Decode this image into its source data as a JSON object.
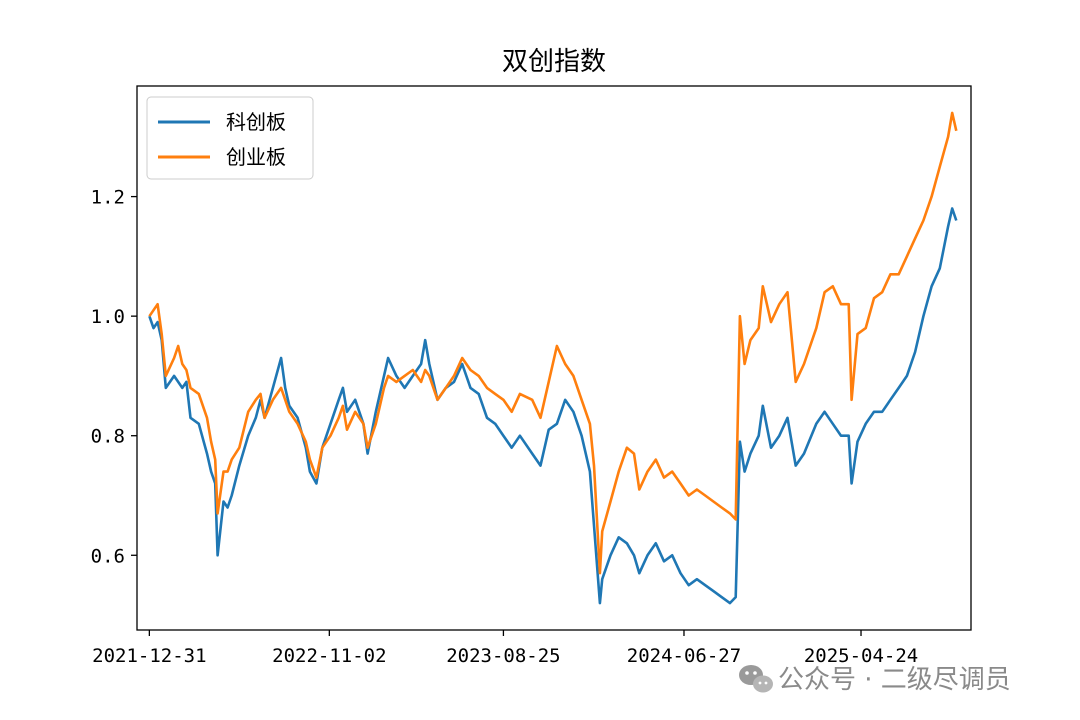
{
  "chart_data": {
    "type": "line",
    "title": "双创指数",
    "xlabel": "",
    "ylabel": "",
    "x_tick_labels": [
      "2021-12-31",
      "2022-11-02",
      "2023-08-25",
      "2024-06-27",
      "2025-04-24"
    ],
    "x_range": [
      "2021-12-10",
      "2025-10-28"
    ],
    "ylim": [
      0.475,
      1.385
    ],
    "y_ticks": [
      0.6,
      0.8,
      1.0,
      1.2
    ],
    "y_tick_labels": [
      "0.6",
      "0.8",
      "1.0",
      "1.2"
    ],
    "grid": false,
    "legend_position": "top-left",
    "series": [
      {
        "name": "科创板",
        "color": "#1f77b4",
        "points": [
          [
            "2021-12-31",
            1.0
          ],
          [
            "2022-01-07",
            0.98
          ],
          [
            "2022-01-14",
            0.99
          ],
          [
            "2022-01-21",
            0.96
          ],
          [
            "2022-01-28",
            0.88
          ],
          [
            "2022-02-11",
            0.9
          ],
          [
            "2022-02-25",
            0.88
          ],
          [
            "2022-03-04",
            0.89
          ],
          [
            "2022-03-11",
            0.83
          ],
          [
            "2022-03-25",
            0.82
          ],
          [
            "2022-04-08",
            0.77
          ],
          [
            "2022-04-15",
            0.74
          ],
          [
            "2022-04-22",
            0.72
          ],
          [
            "2022-04-26",
            0.6
          ],
          [
            "2022-05-06",
            0.69
          ],
          [
            "2022-05-13",
            0.68
          ],
          [
            "2022-05-20",
            0.7
          ],
          [
            "2022-06-02",
            0.75
          ],
          [
            "2022-06-17",
            0.8
          ],
          [
            "2022-06-30",
            0.83
          ],
          [
            "2022-07-08",
            0.86
          ],
          [
            "2022-07-15",
            0.83
          ],
          [
            "2022-07-29",
            0.88
          ],
          [
            "2022-08-12",
            0.93
          ],
          [
            "2022-08-19",
            0.88
          ],
          [
            "2022-08-26",
            0.85
          ],
          [
            "2022-09-09",
            0.83
          ],
          [
            "2022-09-23",
            0.78
          ],
          [
            "2022-09-30",
            0.74
          ],
          [
            "2022-10-11",
            0.72
          ],
          [
            "2022-10-21",
            0.78
          ],
          [
            "2022-11-04",
            0.82
          ],
          [
            "2022-11-18",
            0.86
          ],
          [
            "2022-11-25",
            0.88
          ],
          [
            "2022-12-02",
            0.84
          ],
          [
            "2022-12-16",
            0.86
          ],
          [
            "2022-12-30",
            0.82
          ],
          [
            "2023-01-06",
            0.77
          ],
          [
            "2023-01-20",
            0.84
          ],
          [
            "2023-02-03",
            0.9
          ],
          [
            "2023-02-10",
            0.93
          ],
          [
            "2023-02-24",
            0.9
          ],
          [
            "2023-03-10",
            0.88
          ],
          [
            "2023-03-24",
            0.9
          ],
          [
            "2023-04-07",
            0.92
          ],
          [
            "2023-04-14",
            0.96
          ],
          [
            "2023-04-21",
            0.92
          ],
          [
            "2023-05-05",
            0.86
          ],
          [
            "2023-05-19",
            0.88
          ],
          [
            "2023-06-02",
            0.89
          ],
          [
            "2023-06-16",
            0.92
          ],
          [
            "2023-06-30",
            0.88
          ],
          [
            "2023-07-14",
            0.87
          ],
          [
            "2023-07-28",
            0.83
          ],
          [
            "2023-08-11",
            0.82
          ],
          [
            "2023-08-25",
            0.8
          ],
          [
            "2023-09-08",
            0.78
          ],
          [
            "2023-09-22",
            0.8
          ],
          [
            "2023-10-13",
            0.77
          ],
          [
            "2023-10-27",
            0.75
          ],
          [
            "2023-11-10",
            0.81
          ],
          [
            "2023-11-24",
            0.82
          ],
          [
            "2023-12-08",
            0.86
          ],
          [
            "2023-12-22",
            0.84
          ],
          [
            "2024-01-05",
            0.8
          ],
          [
            "2024-01-19",
            0.74
          ],
          [
            "2024-01-26",
            0.65
          ],
          [
            "2024-02-05",
            0.52
          ],
          [
            "2024-02-09",
            0.56
          ],
          [
            "2024-02-23",
            0.6
          ],
          [
            "2024-03-08",
            0.63
          ],
          [
            "2024-03-22",
            0.62
          ],
          [
            "2024-04-03",
            0.6
          ],
          [
            "2024-04-12",
            0.57
          ],
          [
            "2024-04-26",
            0.6
          ],
          [
            "2024-05-10",
            0.62
          ],
          [
            "2024-05-24",
            0.59
          ],
          [
            "2024-06-07",
            0.6
          ],
          [
            "2024-06-21",
            0.57
          ],
          [
            "2024-07-05",
            0.55
          ],
          [
            "2024-07-19",
            0.56
          ],
          [
            "2024-08-02",
            0.55
          ],
          [
            "2024-08-16",
            0.54
          ],
          [
            "2024-08-30",
            0.53
          ],
          [
            "2024-09-13",
            0.52
          ],
          [
            "2024-09-23",
            0.53
          ],
          [
            "2024-09-30",
            0.79
          ],
          [
            "2024-10-08",
            0.74
          ],
          [
            "2024-10-18",
            0.77
          ],
          [
            "2024-11-01",
            0.8
          ],
          [
            "2024-11-08",
            0.85
          ],
          [
            "2024-11-22",
            0.78
          ],
          [
            "2024-12-06",
            0.8
          ],
          [
            "2024-12-20",
            0.83
          ],
          [
            "2025-01-03",
            0.75
          ],
          [
            "2025-01-17",
            0.77
          ],
          [
            "2025-02-07",
            0.82
          ],
          [
            "2025-02-21",
            0.84
          ],
          [
            "2025-03-07",
            0.82
          ],
          [
            "2025-03-21",
            0.8
          ],
          [
            "2025-04-03",
            0.8
          ],
          [
            "2025-04-08",
            0.72
          ],
          [
            "2025-04-18",
            0.79
          ],
          [
            "2025-05-02",
            0.82
          ],
          [
            "2025-05-16",
            0.84
          ],
          [
            "2025-05-30",
            0.84
          ],
          [
            "2025-06-13",
            0.86
          ],
          [
            "2025-06-27",
            0.88
          ],
          [
            "2025-07-11",
            0.9
          ],
          [
            "2025-07-25",
            0.94
          ],
          [
            "2025-08-08",
            1.0
          ],
          [
            "2025-08-22",
            1.05
          ],
          [
            "2025-09-05",
            1.08
          ],
          [
            "2025-09-19",
            1.15
          ],
          [
            "2025-09-26",
            1.18
          ],
          [
            "2025-10-03",
            1.16
          ]
        ]
      },
      {
        "name": "创业板",
        "color": "#ff7f0e",
        "points": [
          [
            "2021-12-31",
            1.0
          ],
          [
            "2022-01-07",
            1.01
          ],
          [
            "2022-01-14",
            1.02
          ],
          [
            "2022-01-21",
            0.97
          ],
          [
            "2022-01-28",
            0.9
          ],
          [
            "2022-02-11",
            0.93
          ],
          [
            "2022-02-18",
            0.95
          ],
          [
            "2022-02-25",
            0.92
          ],
          [
            "2022-03-04",
            0.91
          ],
          [
            "2022-03-11",
            0.88
          ],
          [
            "2022-03-25",
            0.87
          ],
          [
            "2022-04-08",
            0.83
          ],
          [
            "2022-04-15",
            0.79
          ],
          [
            "2022-04-22",
            0.76
          ],
          [
            "2022-04-26",
            0.67
          ],
          [
            "2022-05-06",
            0.74
          ],
          [
            "2022-05-13",
            0.74
          ],
          [
            "2022-05-20",
            0.76
          ],
          [
            "2022-06-02",
            0.78
          ],
          [
            "2022-06-17",
            0.84
          ],
          [
            "2022-06-30",
            0.86
          ],
          [
            "2022-07-08",
            0.87
          ],
          [
            "2022-07-15",
            0.83
          ],
          [
            "2022-07-29",
            0.86
          ],
          [
            "2022-08-12",
            0.88
          ],
          [
            "2022-08-19",
            0.86
          ],
          [
            "2022-08-26",
            0.84
          ],
          [
            "2022-09-09",
            0.82
          ],
          [
            "2022-09-23",
            0.79
          ],
          [
            "2022-09-30",
            0.76
          ],
          [
            "2022-10-11",
            0.73
          ],
          [
            "2022-10-21",
            0.78
          ],
          [
            "2022-11-04",
            0.8
          ],
          [
            "2022-11-18",
            0.83
          ],
          [
            "2022-11-25",
            0.85
          ],
          [
            "2022-12-02",
            0.81
          ],
          [
            "2022-12-16",
            0.84
          ],
          [
            "2022-12-30",
            0.82
          ],
          [
            "2023-01-06",
            0.78
          ],
          [
            "2023-01-20",
            0.82
          ],
          [
            "2023-02-03",
            0.88
          ],
          [
            "2023-02-10",
            0.9
          ],
          [
            "2023-02-24",
            0.89
          ],
          [
            "2023-03-10",
            0.9
          ],
          [
            "2023-03-24",
            0.91
          ],
          [
            "2023-04-07",
            0.89
          ],
          [
            "2023-04-14",
            0.91
          ],
          [
            "2023-04-21",
            0.9
          ],
          [
            "2023-05-05",
            0.86
          ],
          [
            "2023-05-19",
            0.88
          ],
          [
            "2023-06-02",
            0.9
          ],
          [
            "2023-06-16",
            0.93
          ],
          [
            "2023-06-30",
            0.91
          ],
          [
            "2023-07-14",
            0.9
          ],
          [
            "2023-07-28",
            0.88
          ],
          [
            "2023-08-11",
            0.87
          ],
          [
            "2023-08-25",
            0.86
          ],
          [
            "2023-09-08",
            0.84
          ],
          [
            "2023-09-22",
            0.87
          ],
          [
            "2023-10-13",
            0.86
          ],
          [
            "2023-10-27",
            0.83
          ],
          [
            "2023-11-10",
            0.89
          ],
          [
            "2023-11-24",
            0.95
          ],
          [
            "2023-12-08",
            0.92
          ],
          [
            "2023-12-22",
            0.9
          ],
          [
            "2024-01-05",
            0.86
          ],
          [
            "2024-01-19",
            0.82
          ],
          [
            "2024-01-26",
            0.75
          ],
          [
            "2024-02-05",
            0.57
          ],
          [
            "2024-02-09",
            0.64
          ],
          [
            "2024-02-23",
            0.69
          ],
          [
            "2024-03-08",
            0.74
          ],
          [
            "2024-03-22",
            0.78
          ],
          [
            "2024-04-03",
            0.77
          ],
          [
            "2024-04-12",
            0.71
          ],
          [
            "2024-04-26",
            0.74
          ],
          [
            "2024-05-10",
            0.76
          ],
          [
            "2024-05-24",
            0.73
          ],
          [
            "2024-06-07",
            0.74
          ],
          [
            "2024-06-21",
            0.72
          ],
          [
            "2024-07-05",
            0.7
          ],
          [
            "2024-07-19",
            0.71
          ],
          [
            "2024-08-02",
            0.7
          ],
          [
            "2024-08-16",
            0.69
          ],
          [
            "2024-08-30",
            0.68
          ],
          [
            "2024-09-13",
            0.67
          ],
          [
            "2024-09-23",
            0.66
          ],
          [
            "2024-09-30",
            1.0
          ],
          [
            "2024-10-08",
            0.92
          ],
          [
            "2024-10-18",
            0.96
          ],
          [
            "2024-11-01",
            0.98
          ],
          [
            "2024-11-08",
            1.05
          ],
          [
            "2024-11-22",
            0.99
          ],
          [
            "2024-12-06",
            1.02
          ],
          [
            "2024-12-20",
            1.04
          ],
          [
            "2025-01-03",
            0.89
          ],
          [
            "2025-01-17",
            0.92
          ],
          [
            "2025-02-07",
            0.98
          ],
          [
            "2025-02-21",
            1.04
          ],
          [
            "2025-03-07",
            1.05
          ],
          [
            "2025-03-21",
            1.02
          ],
          [
            "2025-04-03",
            1.02
          ],
          [
            "2025-04-08",
            0.86
          ],
          [
            "2025-04-18",
            0.97
          ],
          [
            "2025-05-02",
            0.98
          ],
          [
            "2025-05-16",
            1.03
          ],
          [
            "2025-05-30",
            1.04
          ],
          [
            "2025-06-13",
            1.07
          ],
          [
            "2025-06-27",
            1.07
          ],
          [
            "2025-07-11",
            1.1
          ],
          [
            "2025-07-25",
            1.13
          ],
          [
            "2025-08-08",
            1.16
          ],
          [
            "2025-08-22",
            1.2
          ],
          [
            "2025-09-05",
            1.25
          ],
          [
            "2025-09-19",
            1.3
          ],
          [
            "2025-09-26",
            1.34
          ],
          [
            "2025-10-03",
            1.31
          ]
        ]
      }
    ]
  },
  "watermark": {
    "icon": "wechat-icon",
    "text": "公众号 · 二级尽调员"
  }
}
